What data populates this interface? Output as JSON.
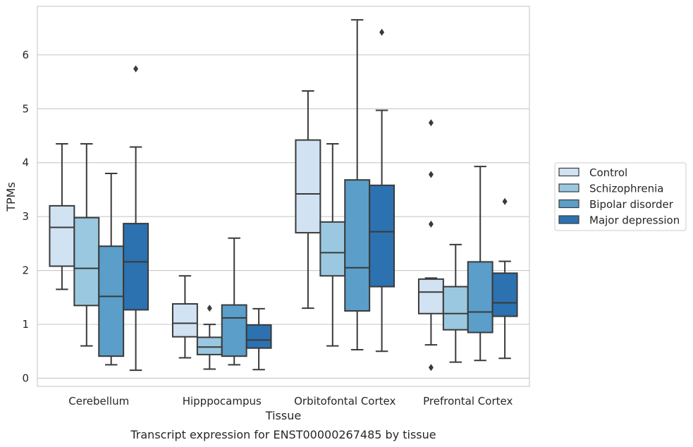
{
  "caption": "Transcript expression for ENST00000267485 by tissue",
  "chart_data": {
    "type": "box",
    "xlabel": "Tissue",
    "ylabel": "TPMs",
    "ylim": [
      -0.15,
      6.9
    ],
    "yticks": [
      0,
      1,
      2,
      3,
      4,
      5,
      6
    ],
    "grid": "horizontal",
    "legend_position": "right",
    "categories": [
      "Cerebellum",
      "Hipppocampus",
      "Orbitofontal Cortex",
      "Prefrontal Cortex"
    ],
    "series": [
      {
        "name": "Control",
        "color": "#d1e2f2",
        "boxes": [
          {
            "whislo": 1.65,
            "q1": 2.08,
            "med": 2.8,
            "q3": 3.2,
            "whishi": 4.35,
            "fliers": []
          },
          {
            "whislo": 0.38,
            "q1": 0.77,
            "med": 1.02,
            "q3": 1.38,
            "whishi": 1.9,
            "fliers": []
          },
          {
            "whislo": 1.3,
            "q1": 2.7,
            "med": 3.42,
            "q3": 4.42,
            "whishi": 5.33,
            "fliers": []
          },
          {
            "whislo": 0.62,
            "q1": 1.2,
            "med": 1.6,
            "q3": 1.84,
            "whishi": 1.86,
            "fliers": [
              0.2,
              2.86,
              3.78,
              4.74
            ]
          }
        ]
      },
      {
        "name": "Schizophrenia",
        "color": "#9ac8e0",
        "boxes": [
          {
            "whislo": 0.6,
            "q1": 1.35,
            "med": 2.04,
            "q3": 2.98,
            "whishi": 4.35,
            "fliers": []
          },
          {
            "whislo": 0.17,
            "q1": 0.44,
            "med": 0.58,
            "q3": 0.76,
            "whishi": 1.0,
            "fliers": [
              1.3
            ]
          },
          {
            "whislo": 0.6,
            "q1": 1.9,
            "med": 2.33,
            "q3": 2.9,
            "whishi": 4.35,
            "fliers": []
          },
          {
            "whislo": 0.3,
            "q1": 0.9,
            "med": 1.2,
            "q3": 1.7,
            "whishi": 2.48,
            "fliers": []
          }
        ]
      },
      {
        "name": "Bipolar disorder",
        "color": "#5a9ec9",
        "boxes": [
          {
            "whislo": 0.25,
            "q1": 0.41,
            "med": 1.52,
            "q3": 2.45,
            "whishi": 3.8,
            "fliers": []
          },
          {
            "whislo": 0.25,
            "q1": 0.41,
            "med": 1.12,
            "q3": 1.36,
            "whishi": 2.6,
            "fliers": []
          },
          {
            "whislo": 0.53,
            "q1": 1.25,
            "med": 2.05,
            "q3": 3.68,
            "whishi": 6.65,
            "fliers": []
          },
          {
            "whislo": 0.33,
            "q1": 0.85,
            "med": 1.23,
            "q3": 2.16,
            "whishi": 3.93,
            "fliers": []
          }
        ]
      },
      {
        "name": "Major depression",
        "color": "#2c71b0",
        "boxes": [
          {
            "whislo": 0.15,
            "q1": 1.27,
            "med": 2.16,
            "q3": 2.87,
            "whishi": 4.29,
            "fliers": [
              5.74
            ]
          },
          {
            "whislo": 0.16,
            "q1": 0.56,
            "med": 0.71,
            "q3": 0.99,
            "whishi": 1.29,
            "fliers": []
          },
          {
            "whislo": 0.5,
            "q1": 1.7,
            "med": 2.72,
            "q3": 3.58,
            "whishi": 4.97,
            "fliers": [
              6.42
            ]
          },
          {
            "whislo": 0.37,
            "q1": 1.15,
            "med": 1.4,
            "q3": 1.95,
            "whishi": 2.17,
            "fliers": [
              3.28
            ]
          }
        ]
      }
    ]
  }
}
